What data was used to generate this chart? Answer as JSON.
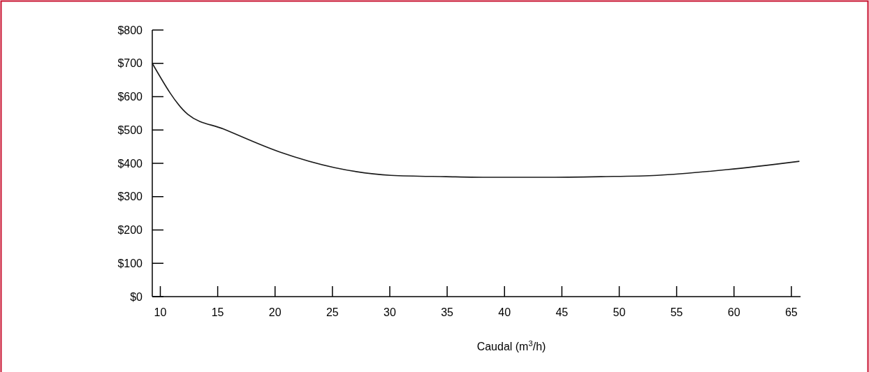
{
  "chart_data": {
    "type": "line",
    "xlabel": "Caudal (m$^{3}$/h)",
    "x": [
      9.3,
      12.4,
      15.5,
      20.4,
      25.2,
      30.1,
      34.9,
      38.7,
      43.5,
      48.4,
      53.3,
      59.4,
      65.7
    ],
    "series": [
      {
        "color": "#1a1a1a",
        "values": [
          700,
          547,
          503,
          434,
          387,
          364,
          360,
          358,
          358,
          360,
          364,
          381,
          406
        ]
      }
    ],
    "xlim": [
      9.3,
      65.8
    ],
    "xticks": [
      10,
      15,
      20,
      25,
      30,
      35,
      40,
      45,
      50,
      55,
      60,
      65
    ],
    "ylim": [
      0,
      800
    ],
    "yticks": [
      {
        "value": 0,
        "label": "$0"
      },
      {
        "value": 100,
        "label": "$100"
      },
      {
        "value": 200,
        "label": "$200"
      },
      {
        "value": 300,
        "label": "$300"
      },
      {
        "value": 400,
        "label": "$400"
      },
      {
        "value": 500,
        "label": "$500"
      },
      {
        "value": 600,
        "label": "$600"
      },
      {
        "value": 700,
        "label": "$700"
      },
      {
        "value": 800,
        "label": "$800"
      }
    ],
    "grid": false,
    "marker": "none",
    "line_style": "solid"
  }
}
